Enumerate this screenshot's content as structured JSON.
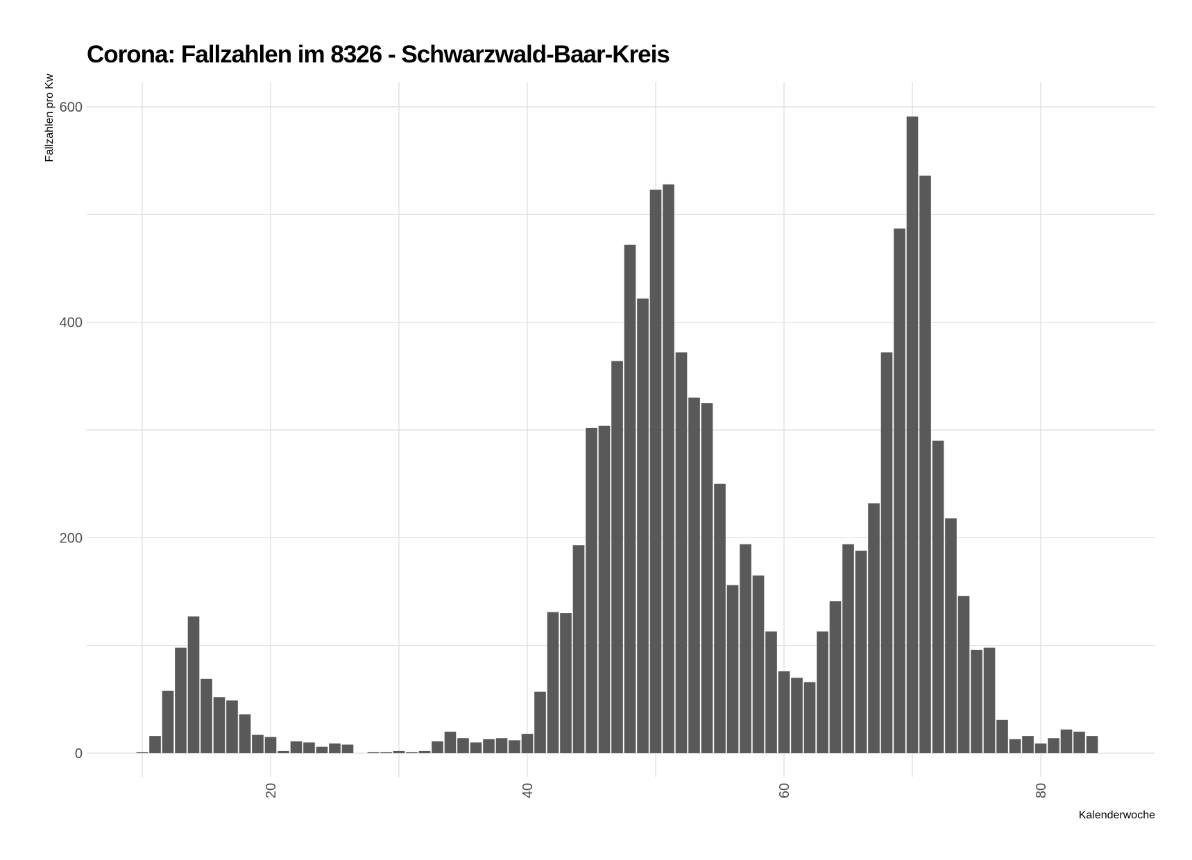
{
  "chart_data": {
    "type": "bar",
    "title": "Corona: Fallzahlen im 8326 - Schwarzwald-Baar-Kreis",
    "xlabel": "Kalenderwoche",
    "ylabel": "Fallzahlen pro Kw",
    "xlim": [
      2,
      86
    ],
    "ylim": [
      -30,
      620
    ],
    "x_ticks": [
      20,
      40,
      60,
      80
    ],
    "y_ticks": [
      0,
      200,
      400,
      600
    ],
    "y_minor_gridlines": [
      100,
      300,
      500
    ],
    "x_minor_gridlines": [
      10,
      30,
      50,
      70
    ],
    "grid": true,
    "bar_color": "#595959",
    "x": [
      10,
      11,
      12,
      13,
      14,
      15,
      16,
      17,
      18,
      19,
      20,
      21,
      22,
      23,
      24,
      25,
      26,
      28,
      29,
      30,
      31,
      32,
      33,
      34,
      35,
      36,
      37,
      38,
      39,
      40,
      41,
      42,
      43,
      44,
      45,
      46,
      47,
      48,
      49,
      50,
      51,
      52,
      53,
      54,
      55,
      56,
      57,
      58,
      59,
      60,
      61,
      62,
      63,
      64,
      65,
      66,
      67,
      68,
      69,
      70,
      71,
      72,
      73,
      74,
      75,
      76,
      77,
      78,
      79,
      80,
      81,
      82,
      83,
      84
    ],
    "values": [
      1,
      16,
      58,
      98,
      127,
      69,
      52,
      49,
      36,
      17,
      15,
      2,
      11,
      10,
      6,
      9,
      8,
      1,
      1,
      2,
      1,
      2,
      11,
      20,
      14,
      10,
      13,
      14,
      12,
      18,
      57,
      131,
      130,
      193,
      302,
      304,
      364,
      472,
      422,
      523,
      528,
      372,
      330,
      325,
      250,
      156,
      194,
      165,
      113,
      76,
      70,
      66,
      113,
      141,
      194,
      188,
      232,
      372,
      487,
      591,
      536,
      290,
      218,
      146,
      96,
      98,
      31,
      13,
      16,
      9,
      14,
      22,
      20,
      16
    ]
  }
}
